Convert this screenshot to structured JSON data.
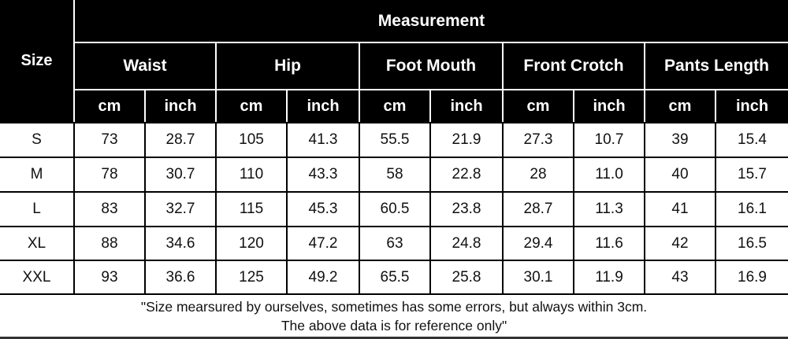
{
  "table": {
    "size_header": "Size",
    "measurement_header": "Measurement",
    "groups": [
      "Waist",
      "Hip",
      "Foot Mouth",
      "Front Crotch",
      "Pants Length"
    ],
    "units": [
      "cm",
      "inch",
      "cm",
      "inch",
      "cm",
      "inch",
      "cm",
      "inch",
      "cm",
      "inch"
    ],
    "rows": [
      {
        "size": "S",
        "values": [
          "73",
          "28.7",
          "105",
          "41.3",
          "55.5",
          "21.9",
          "27.3",
          "10.7",
          "39",
          "15.4"
        ]
      },
      {
        "size": "M",
        "values": [
          "78",
          "30.7",
          "110",
          "43.3",
          "58",
          "22.8",
          "28",
          "11.0",
          "40",
          "15.7"
        ]
      },
      {
        "size": "L",
        "values": [
          "83",
          "32.7",
          "115",
          "45.3",
          "60.5",
          "23.8",
          "28.7",
          "11.3",
          "41",
          "16.1"
        ]
      },
      {
        "size": "XL",
        "values": [
          "88",
          "34.6",
          "120",
          "47.2",
          "63",
          "24.8",
          "29.4",
          "11.6",
          "42",
          "16.5"
        ]
      },
      {
        "size": "XXL",
        "values": [
          "93",
          "36.6",
          "125",
          "49.2",
          "65.5",
          "25.8",
          "30.1",
          "11.9",
          "43",
          "16.9"
        ]
      }
    ],
    "note_line1": "\"Size mearsured by ourselves, sometimes has some errors, but always within 3cm.",
    "note_line2": "The above data is for reference only\""
  },
  "colors": {
    "header_bg": "#000000",
    "header_text": "#ffffff",
    "body_bg": "#ffffff",
    "grid_line": "#000000"
  }
}
